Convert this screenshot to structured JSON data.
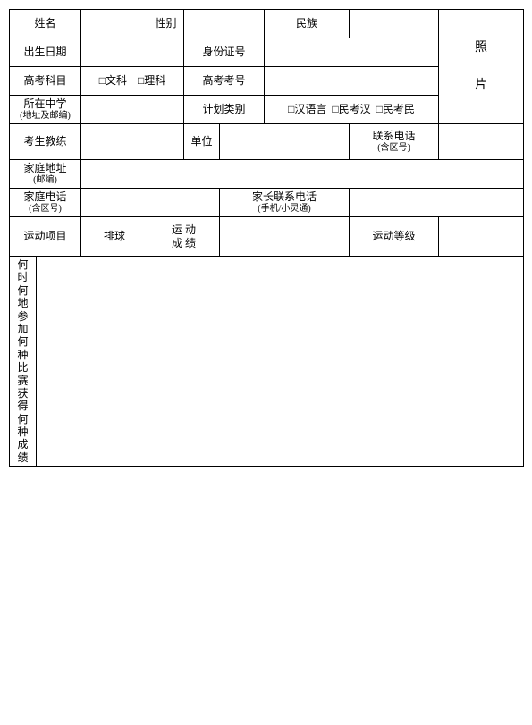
{
  "labels": {
    "name": "姓名",
    "gender": "性别",
    "ethnic": "民族",
    "photo_line1": "照",
    "photo_line2": "片",
    "birth": "出生日期",
    "idno": "身份证号",
    "gk_subject": "高考科目",
    "chk_wen": "□文科",
    "chk_li": "□理科",
    "gk_no": "高考考号",
    "school": "所在中学",
    "school_sub": "(地址及邮编)",
    "plan_type": "计划类别",
    "chk_han": "□汉语言",
    "chk_mkh": "□民考汉",
    "chk_mkm": "□民考民",
    "coach": "考生教练",
    "danwei": "单位",
    "lxdh": "联系电话",
    "lxdh_sub": "(含区号)",
    "home_addr": "家庭地址",
    "home_addr_sub": "(邮编)",
    "home_phone": "家庭电话",
    "home_phone_sub": "(含区号)",
    "parent_phone": "家长联系电话",
    "parent_phone_sub": "(手机/小灵通)",
    "sport_item": "运动项目",
    "volleyball": "排球",
    "sport_score_l1": "运  动",
    "sport_score_l2": "成  绩",
    "sport_level": "运动等级",
    "history": "何时何地参加何种比赛获得何种成绩"
  }
}
